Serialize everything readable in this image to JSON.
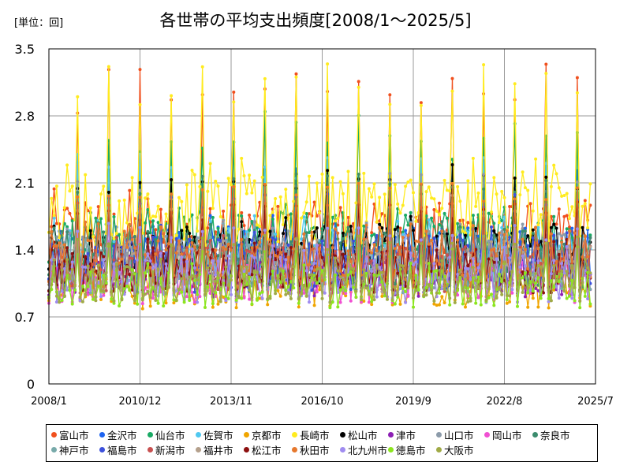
{
  "unit_label": "[単位：回]",
  "chart_data": {
    "type": "line",
    "title": "各世帯の平均支出頻度[2008/1～2025/5]",
    "xlabel": "",
    "ylabel": "",
    "x_start": "2008/1",
    "x_end": "2025/7",
    "x_tick_labels": [
      "2008/1",
      "2010/12",
      "2013/11",
      "2016/10",
      "2019/9",
      "2022/8",
      "2025/7"
    ],
    "ylim": [
      0,
      3.5
    ],
    "y_ticks": [
      0,
      0.7,
      1.4,
      2.1,
      2.8,
      3.5
    ],
    "y_tick_labels": [
      "0",
      "0.7",
      "1.4",
      "2.1",
      "2.8",
      "3.5"
    ],
    "grid": true,
    "legend_position": "bottom",
    "series": [
      {
        "name": "富山市",
        "color": "#f0501e",
        "base": 1.55,
        "amp": 0.35,
        "peak": 2.7,
        "peak_max": 3.37
      },
      {
        "name": "金沢市",
        "color": "#1e64f0",
        "base": 1.35,
        "amp": 0.3,
        "peak": 1.9,
        "peak_max": 2.3
      },
      {
        "name": "仙台市",
        "color": "#19aa64",
        "base": 1.5,
        "amp": 0.3,
        "peak": 2.3,
        "peak_max": 2.85
      },
      {
        "name": "佐賀市",
        "color": "#50c8f0",
        "base": 1.35,
        "amp": 0.3,
        "peak": 2.0,
        "peak_max": 2.45
      },
      {
        "name": "京都市",
        "color": "#f0a500",
        "base": 1.0,
        "amp": 0.2,
        "peak": 1.3,
        "peak_max": 1.5
      },
      {
        "name": "長崎市",
        "color": "#ffeb1e",
        "base": 1.8,
        "amp": 0.4,
        "peak": 2.9,
        "peak_max": 3.43
      },
      {
        "name": "松山市",
        "color": "#000000",
        "base": 1.35,
        "amp": 0.3,
        "peak": 2.0,
        "peak_max": 2.3
      },
      {
        "name": "津市",
        "color": "#8c1eb4",
        "base": 1.1,
        "amp": 0.2,
        "peak": 1.45,
        "peak_max": 1.6
      },
      {
        "name": "山口市",
        "color": "#8c9baa",
        "base": 1.3,
        "amp": 0.3,
        "peak": 1.9,
        "peak_max": 2.2
      },
      {
        "name": "岡山市",
        "color": "#f050d2",
        "base": 1.05,
        "amp": 0.2,
        "peak": 1.4,
        "peak_max": 1.6
      },
      {
        "name": "奈良市",
        "color": "#3c8c6e",
        "base": 1.3,
        "amp": 0.3,
        "peak": 1.9,
        "peak_max": 2.2
      },
      {
        "name": "神戸市",
        "color": "#78aaaa",
        "base": 1.2,
        "amp": 0.25,
        "peak": 1.6,
        "peak_max": 1.8
      },
      {
        "name": "福島市",
        "color": "#3c50dc",
        "base": 1.25,
        "amp": 0.3,
        "peak": 1.8,
        "peak_max": 2.0
      },
      {
        "name": "新潟市",
        "color": "#c85050",
        "base": 1.2,
        "amp": 0.25,
        "peak": 1.7,
        "peak_max": 1.9
      },
      {
        "name": "福井市",
        "color": "#b4a08c",
        "base": 1.2,
        "amp": 0.25,
        "peak": 1.7,
        "peak_max": 1.9
      },
      {
        "name": "松江市",
        "color": "#8c0f0f",
        "base": 1.2,
        "amp": 0.25,
        "peak": 1.7,
        "peak_max": 1.95
      },
      {
        "name": "秋田市",
        "color": "#e6782d",
        "base": 1.3,
        "amp": 0.3,
        "peak": 1.9,
        "peak_max": 2.1
      },
      {
        "name": "北九州市",
        "color": "#a08cf0",
        "base": 1.1,
        "amp": 0.25,
        "peak": 1.5,
        "peak_max": 1.7
      },
      {
        "name": "徳島市",
        "color": "#8ce61e",
        "base": 1.0,
        "amp": 0.2,
        "peak": 1.3,
        "peak_max": 1.45
      },
      {
        "name": "大阪市",
        "color": "#a0aa46",
        "base": 1.05,
        "amp": 0.2,
        "peak": 1.4,
        "peak_max": 1.55
      }
    ]
  }
}
